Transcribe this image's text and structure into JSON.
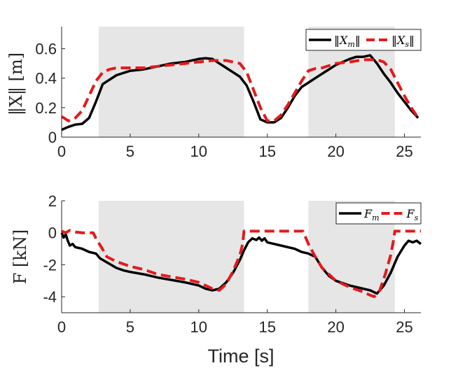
{
  "colors": {
    "master": "#000000",
    "slave": "#e41a1c",
    "shade": "#e6e6e6",
    "axis": "#262626"
  },
  "chart_data": [
    {
      "type": "line",
      "ylabel": "‖X‖ [m]",
      "xlabel": "",
      "xlim": [
        0,
        26.2
      ],
      "ylim": [
        0,
        0.75
      ],
      "xticks": [
        0,
        5,
        10,
        15,
        20,
        25
      ],
      "xtick_labels": [
        "0",
        "5",
        "10",
        "15",
        "20",
        "25"
      ],
      "yticks": [
        0,
        0.2,
        0.4,
        0.6
      ],
      "ytick_labels": [
        "0",
        "0.2",
        "0.4",
        "0.6"
      ],
      "shaded_x_ranges": [
        [
          2.7,
          13.3
        ],
        [
          18.0,
          24.3
        ]
      ],
      "legend": {
        "placement": "top-right",
        "entries": [
          "‖Xm‖",
          "‖Xs‖"
        ]
      },
      "series": [
        {
          "name": "‖Xm‖",
          "style": "solid",
          "x": [
            0,
            0.5,
            1.0,
            1.5,
            2.0,
            2.5,
            3.0,
            4.0,
            5.0,
            6.0,
            7.0,
            8.0,
            9.0,
            10.0,
            10.5,
            11.0,
            11.5,
            12.0,
            12.5,
            13.0,
            13.5,
            14.0,
            14.5,
            15.0,
            15.5,
            16.0,
            16.5,
            17.0,
            17.5,
            18.0,
            18.5,
            19.0,
            19.5,
            20.0,
            20.5,
            21.0,
            21.5,
            22.0,
            22.5,
            23.0,
            23.5,
            24.0,
            24.5,
            25.0,
            25.5,
            26.0
          ],
          "y": [
            0.05,
            0.07,
            0.085,
            0.09,
            0.13,
            0.24,
            0.36,
            0.42,
            0.45,
            0.46,
            0.48,
            0.5,
            0.51,
            0.53,
            0.535,
            0.53,
            0.5,
            0.47,
            0.44,
            0.41,
            0.35,
            0.24,
            0.12,
            0.1,
            0.1,
            0.13,
            0.2,
            0.28,
            0.34,
            0.37,
            0.4,
            0.43,
            0.46,
            0.49,
            0.51,
            0.53,
            0.545,
            0.545,
            0.555,
            0.5,
            0.43,
            0.37,
            0.3,
            0.24,
            0.18,
            0.13
          ]
        },
        {
          "name": "‖Xs‖",
          "style": "dashed",
          "x": [
            0,
            0.5,
            1.0,
            1.5,
            2.0,
            2.5,
            3.0,
            3.5,
            4.0,
            5.0,
            6.0,
            7.0,
            8.0,
            9.0,
            10.0,
            11.0,
            12.0,
            13.0,
            13.5,
            14.0,
            14.5,
            15.0,
            15.5,
            16.0,
            16.5,
            17.0,
            17.5,
            18.0,
            18.5,
            19.0,
            20.0,
            21.0,
            22.0,
            23.0,
            23.5,
            24.0,
            24.5,
            25.0,
            25.5,
            26.0
          ],
          "y": [
            0.14,
            0.11,
            0.13,
            0.18,
            0.28,
            0.38,
            0.44,
            0.46,
            0.47,
            0.47,
            0.47,
            0.48,
            0.49,
            0.5,
            0.51,
            0.52,
            0.52,
            0.5,
            0.44,
            0.32,
            0.2,
            0.11,
            0.11,
            0.15,
            0.22,
            0.3,
            0.38,
            0.45,
            0.465,
            0.47,
            0.5,
            0.51,
            0.525,
            0.525,
            0.51,
            0.46,
            0.37,
            0.28,
            0.2,
            0.13
          ]
        }
      ]
    },
    {
      "type": "line",
      "ylabel": "F [kN]",
      "xlabel": "Time [s]",
      "xlim": [
        0,
        26.2
      ],
      "ylim": [
        -5,
        2
      ],
      "xticks": [
        0,
        5,
        10,
        15,
        20,
        25
      ],
      "xtick_labels": [
        "0",
        "5",
        "10",
        "15",
        "20",
        "25"
      ],
      "yticks": [
        -4,
        -2,
        0,
        2
      ],
      "ytick_labels": [
        "-4",
        "-2",
        "0",
        "2"
      ],
      "shaded_x_ranges": [
        [
          2.7,
          13.3
        ],
        [
          18.0,
          24.3
        ]
      ],
      "legend": {
        "placement": "top-right",
        "entries": [
          "Fm",
          "Fs"
        ]
      },
      "series": [
        {
          "name": "Fm",
          "style": "solid",
          "x": [
            0,
            0.15,
            0.3,
            0.45,
            0.6,
            0.8,
            1.0,
            1.5,
            2.0,
            2.5,
            2.8,
            3.2,
            3.6,
            4.0,
            4.5,
            5.0,
            6.0,
            7.0,
            8.0,
            9.0,
            10.0,
            10.5,
            11.0,
            11.5,
            12.0,
            12.5,
            13.0,
            13.3,
            13.6,
            13.9,
            14.2,
            14.4,
            14.6,
            14.8,
            15.0,
            15.5,
            16.0,
            16.5,
            17.0,
            17.5,
            18.0,
            18.5,
            19.0,
            19.5,
            20.0,
            21.0,
            22.0,
            22.5,
            23.0,
            23.5,
            24.0,
            24.5,
            25.0,
            25.3,
            25.6,
            25.9,
            26.2
          ],
          "y": [
            0,
            -0.3,
            -0.1,
            -0.5,
            -0.8,
            -0.7,
            -0.9,
            -1.0,
            -1.2,
            -1.3,
            -1.6,
            -1.8,
            -2.0,
            -2.2,
            -2.35,
            -2.45,
            -2.6,
            -2.8,
            -2.95,
            -3.1,
            -3.3,
            -3.5,
            -3.6,
            -3.5,
            -3.1,
            -2.5,
            -1.7,
            -1.1,
            -0.6,
            -0.35,
            -0.45,
            -0.3,
            -0.5,
            -0.35,
            -0.6,
            -0.7,
            -0.8,
            -0.9,
            -1.0,
            -1.2,
            -1.3,
            -1.5,
            -2.2,
            -2.7,
            -3.0,
            -3.3,
            -3.5,
            -3.6,
            -3.8,
            -3.3,
            -2.5,
            -1.5,
            -0.8,
            -0.5,
            -0.6,
            -0.5,
            -0.7
          ]
        },
        {
          "name": "Fs",
          "style": "dashed",
          "x": [
            0,
            0.3,
            0.6,
            1.0,
            1.5,
            2.0,
            2.3,
            2.6,
            2.9,
            3.3,
            4.0,
            5.0,
            6.0,
            7.0,
            8.0,
            9.0,
            10.0,
            10.5,
            11.0,
            11.5,
            12.0,
            12.5,
            13.0,
            13.2,
            13.3,
            14.0,
            15.0,
            16.0,
            17.0,
            17.6,
            18.0,
            18.5,
            19.0,
            20.0,
            21.0,
            22.0,
            22.5,
            22.8,
            23.2,
            23.6,
            24.0,
            24.2,
            24.3,
            25.0,
            26.2
          ],
          "y": [
            0.1,
            0.0,
            0.15,
            0.05,
            0.0,
            0.0,
            0.0,
            -0.5,
            -0.9,
            -1.5,
            -1.8,
            -2.1,
            -2.3,
            -2.6,
            -2.75,
            -2.9,
            -3.1,
            -3.3,
            -3.5,
            -3.6,
            -3.2,
            -2.4,
            -1.4,
            -0.7,
            0.1,
            0.1,
            0.1,
            0.1,
            0.1,
            0.1,
            -0.7,
            -1.5,
            -2.2,
            -3.0,
            -3.4,
            -3.7,
            -3.9,
            -4.0,
            -3.6,
            -2.6,
            -1.4,
            -0.5,
            0.1,
            0.1,
            0.1
          ]
        }
      ]
    }
  ]
}
